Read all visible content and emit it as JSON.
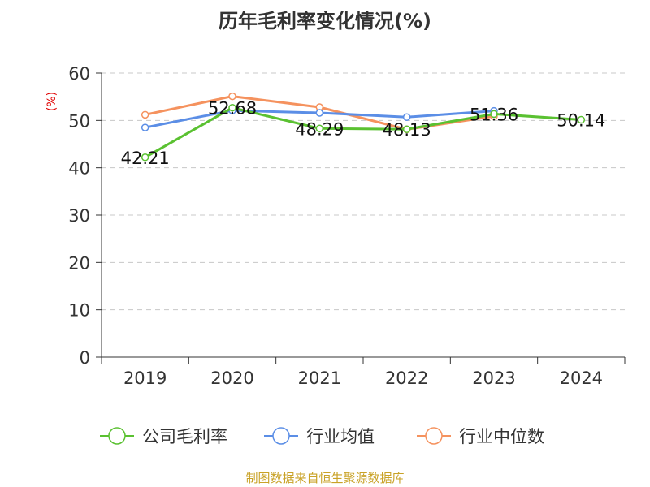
{
  "chart_data": {
    "type": "line",
    "title": "历年毛利率变化情况(%)",
    "xlabel": "",
    "ylabel": "(%)",
    "ylim": [
      0,
      60
    ],
    "yticks": [
      0,
      10,
      20,
      30,
      40,
      50,
      60
    ],
    "categories": [
      "2019",
      "2020",
      "2021",
      "2022",
      "2023",
      "2024"
    ],
    "grid": true,
    "legend_position": "bottom",
    "series": [
      {
        "name": "公司毛利率",
        "color": "#5ac131",
        "values": [
          42.21,
          52.68,
          48.29,
          48.13,
          51.36,
          50.14
        ],
        "labels": [
          "42.21",
          "52.68",
          "48.29",
          "48.13",
          "51.36",
          "50.14"
        ]
      },
      {
        "name": "行业均值",
        "color": "#5b8ee6",
        "values": [
          48.5,
          52.1,
          51.6,
          50.7,
          52.0,
          null
        ]
      },
      {
        "name": "行业中位数",
        "color": "#f5925e",
        "values": [
          51.2,
          55.1,
          52.8,
          48.1,
          50.9,
          null
        ]
      }
    ]
  },
  "source": "制图数据来自恒生聚源数据库"
}
